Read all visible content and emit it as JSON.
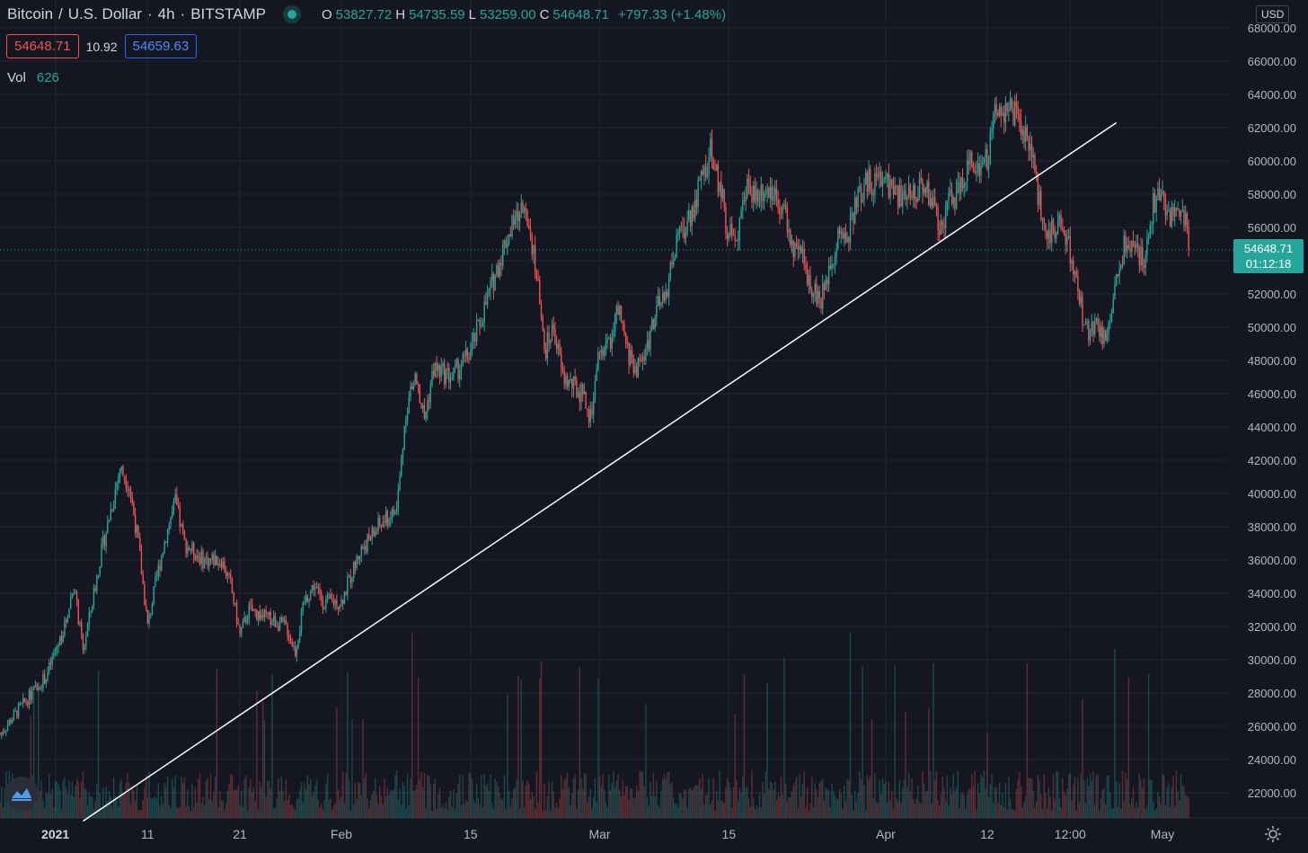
{
  "header": {
    "symbol": "Bitcoin",
    "sep1": "/",
    "quote_name": "U.S. Dollar",
    "sep2": "·",
    "interval": "4h",
    "sep3": "·",
    "exchange": "BITSTAMP",
    "ohlc": {
      "o_label": "O",
      "o_value": "53827.72",
      "h_label": "H",
      "h_value": "54735.59",
      "l_label": "L",
      "l_value": "53259.00",
      "c_label": "C",
      "c_value": "54648.71",
      "change": "+797.33 (+1.48%)"
    }
  },
  "quote": {
    "bid": "54648.71",
    "spread": "10.92",
    "ask": "54659.63"
  },
  "volume": {
    "label": "Vol",
    "value": "626"
  },
  "currency": "USD",
  "last_price": {
    "value": "54648.71",
    "countdown": "01:12:18"
  },
  "colors": {
    "background": "#141722",
    "up": "#26a69a",
    "down": "#ef5350",
    "grid": "#222632",
    "text": "#b2b5be",
    "trendline": "#ffffff"
  },
  "icons": {
    "logo": "tradingview-logo-icon",
    "settings": "gear-icon",
    "live": "live-dot-icon"
  },
  "chart_data": {
    "type": "candlestick",
    "ylim": [
      20000,
      68000
    ],
    "y_ticks": [
      22000,
      24000,
      26000,
      28000,
      30000,
      32000,
      34000,
      36000,
      38000,
      40000,
      42000,
      44000,
      46000,
      48000,
      50000,
      52000,
      54000,
      56000,
      58000,
      60000,
      62000,
      64000,
      66000,
      68000
    ],
    "y_tick_labels": [
      "22000.00",
      "24000.00",
      "26000.00",
      "28000.00",
      "30000.00",
      "32000.00",
      "34000.00",
      "36000.00",
      "38000.00",
      "40000.00",
      "42000.00",
      "44000.00",
      "46000.00",
      "48000.00",
      "50000.00",
      "52000.00",
      "54000.00",
      "56000.00",
      "58000.00",
      "60000.00",
      "62000.00",
      "64000.00",
      "66000.00",
      "68000.00"
    ],
    "x_ticks": [
      {
        "label": "2021",
        "date": "2021-01-01"
      },
      {
        "label": "11",
        "date": "2021-01-11"
      },
      {
        "label": "21",
        "date": "2021-01-21"
      },
      {
        "label": "Feb",
        "date": "2021-02-01"
      },
      {
        "label": "15",
        "date": "2021-02-15"
      },
      {
        "label": "Mar",
        "date": "2021-03-01"
      },
      {
        "label": "15",
        "date": "2021-03-15"
      },
      {
        "label": "Apr",
        "date": "2021-04-01"
      },
      {
        "label": "12",
        "date": "2021-04-12"
      },
      {
        "label": "12:00",
        "date": "2021-04-21"
      },
      {
        "label": "May",
        "date": "2021-05-01"
      }
    ],
    "x_range": [
      "2020-12-26",
      "2021-05-05"
    ],
    "price_path": [
      {
        "date": "2020-12-26",
        "price": 25500
      },
      {
        "date": "2020-12-28",
        "price": 27000
      },
      {
        "date": "2020-12-31",
        "price": 29000
      },
      {
        "date": "2021-01-02",
        "price": 32000
      },
      {
        "date": "2021-01-03",
        "price": 34500
      },
      {
        "date": "2021-01-04",
        "price": 30500
      },
      {
        "date": "2021-01-06",
        "price": 36500
      },
      {
        "date": "2021-01-08",
        "price": 41500
      },
      {
        "date": "2021-01-09",
        "price": 40500
      },
      {
        "date": "2021-01-10",
        "price": 37000
      },
      {
        "date": "2021-01-11",
        "price": 32000
      },
      {
        "date": "2021-01-12",
        "price": 35000
      },
      {
        "date": "2021-01-13",
        "price": 37500
      },
      {
        "date": "2021-01-14",
        "price": 39500
      },
      {
        "date": "2021-01-15",
        "price": 37000
      },
      {
        "date": "2021-01-17",
        "price": 36000
      },
      {
        "date": "2021-01-19",
        "price": 36000
      },
      {
        "date": "2021-01-20",
        "price": 34500
      },
      {
        "date": "2021-01-21",
        "price": 31500
      },
      {
        "date": "2021-01-22",
        "price": 33000
      },
      {
        "date": "2021-01-24",
        "price": 32500
      },
      {
        "date": "2021-01-26",
        "price": 32000
      },
      {
        "date": "2021-01-27",
        "price": 30500
      },
      {
        "date": "2021-01-28",
        "price": 33500
      },
      {
        "date": "2021-01-29",
        "price": 34500
      },
      {
        "date": "2021-01-30",
        "price": 33500
      },
      {
        "date": "2021-02-01",
        "price": 33500
      },
      {
        "date": "2021-02-03",
        "price": 36500
      },
      {
        "date": "2021-02-05",
        "price": 38000
      },
      {
        "date": "2021-02-07",
        "price": 39000
      },
      {
        "date": "2021-02-08",
        "price": 45000
      },
      {
        "date": "2021-02-09",
        "price": 47000
      },
      {
        "date": "2021-02-10",
        "price": 44500
      },
      {
        "date": "2021-02-11",
        "price": 47500
      },
      {
        "date": "2021-02-13",
        "price": 47000
      },
      {
        "date": "2021-02-15",
        "price": 48500
      },
      {
        "date": "2021-02-17",
        "price": 52000
      },
      {
        "date": "2021-02-19",
        "price": 55500
      },
      {
        "date": "2021-02-21",
        "price": 57500
      },
      {
        "date": "2021-02-22",
        "price": 54000
      },
      {
        "date": "2021-02-23",
        "price": 48500
      },
      {
        "date": "2021-02-24",
        "price": 50000
      },
      {
        "date": "2021-02-25",
        "price": 47000
      },
      {
        "date": "2021-02-26",
        "price": 46500
      },
      {
        "date": "2021-02-27",
        "price": 46000
      },
      {
        "date": "2021-02-28",
        "price": 44500
      },
      {
        "date": "2021-03-01",
        "price": 48500
      },
      {
        "date": "2021-03-02",
        "price": 49000
      },
      {
        "date": "2021-03-03",
        "price": 51000
      },
      {
        "date": "2021-03-04",
        "price": 48500
      },
      {
        "date": "2021-03-05",
        "price": 47500
      },
      {
        "date": "2021-03-06",
        "price": 48500
      },
      {
        "date": "2021-03-07",
        "price": 51000
      },
      {
        "date": "2021-03-08",
        "price": 51500
      },
      {
        "date": "2021-03-09",
        "price": 54500
      },
      {
        "date": "2021-03-11",
        "price": 57000
      },
      {
        "date": "2021-03-13",
        "price": 60500
      },
      {
        "date": "2021-03-14",
        "price": 58500
      },
      {
        "date": "2021-03-15",
        "price": 55500
      },
      {
        "date": "2021-03-16",
        "price": 56000
      },
      {
        "date": "2021-03-17",
        "price": 58500
      },
      {
        "date": "2021-03-18",
        "price": 58000
      },
      {
        "date": "2021-03-19",
        "price": 58500
      },
      {
        "date": "2021-03-20",
        "price": 58000
      },
      {
        "date": "2021-03-21",
        "price": 57000
      },
      {
        "date": "2021-03-22",
        "price": 54500
      },
      {
        "date": "2021-03-23",
        "price": 54000
      },
      {
        "date": "2021-03-24",
        "price": 52500
      },
      {
        "date": "2021-03-25",
        "price": 51500
      },
      {
        "date": "2021-03-26",
        "price": 54000
      },
      {
        "date": "2021-03-27",
        "price": 55500
      },
      {
        "date": "2021-03-28",
        "price": 55800
      },
      {
        "date": "2021-03-29",
        "price": 57800
      },
      {
        "date": "2021-03-30",
        "price": 58700
      },
      {
        "date": "2021-04-01",
        "price": 58800
      },
      {
        "date": "2021-04-03",
        "price": 57500
      },
      {
        "date": "2021-04-05",
        "price": 58700
      },
      {
        "date": "2021-04-06",
        "price": 57700
      },
      {
        "date": "2021-04-07",
        "price": 56000
      },
      {
        "date": "2021-04-08",
        "price": 57800
      },
      {
        "date": "2021-04-09",
        "price": 58100
      },
      {
        "date": "2021-04-10",
        "price": 59800
      },
      {
        "date": "2021-04-11",
        "price": 59800
      },
      {
        "date": "2021-04-12",
        "price": 60000
      },
      {
        "date": "2021-04-13",
        "price": 63500
      },
      {
        "date": "2021-04-14",
        "price": 63000
      },
      {
        "date": "2021-04-15",
        "price": 62800
      },
      {
        "date": "2021-04-16",
        "price": 61500
      },
      {
        "date": "2021-04-17",
        "price": 60300
      },
      {
        "date": "2021-04-18",
        "price": 56000
      },
      {
        "date": "2021-04-19",
        "price": 55800
      },
      {
        "date": "2021-04-20",
        "price": 56000
      },
      {
        "date": "2021-04-21",
        "price": 54500
      },
      {
        "date": "2021-04-22",
        "price": 51500
      },
      {
        "date": "2021-04-23",
        "price": 49500
      },
      {
        "date": "2021-04-24",
        "price": 50000
      },
      {
        "date": "2021-04-25",
        "price": 49000
      },
      {
        "date": "2021-04-26",
        "price": 53500
      },
      {
        "date": "2021-04-27",
        "price": 55000
      },
      {
        "date": "2021-04-28",
        "price": 55000
      },
      {
        "date": "2021-04-29",
        "price": 53800
      },
      {
        "date": "2021-04-30",
        "price": 57500
      },
      {
        "date": "2021-05-01",
        "price": 57800
      },
      {
        "date": "2021-05-02",
        "price": 56500
      },
      {
        "date": "2021-05-03",
        "price": 57500
      },
      {
        "date": "2021-05-04",
        "price": 54648.71
      }
    ],
    "trendline": [
      {
        "date": "2021-01-04",
        "price": 20300
      },
      {
        "date": "2021-04-26",
        "price": 62300
      }
    ],
    "last_price_line": 54648.71
  }
}
